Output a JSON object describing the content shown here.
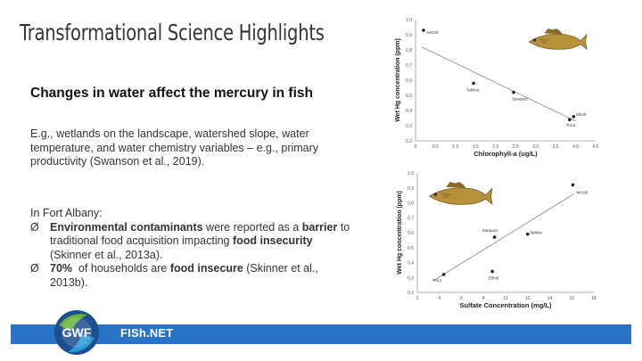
{
  "slide": {
    "title": "Transformational Science Highlights",
    "subheading": "Changes in water affect the mercury in fish",
    "paragraph": "E.g., wetlands on the landscape, watershed slope, water temperature, and water chemistry variables – e.g., primary productivity (Swanson et al., 2019).",
    "intro": "In Fort Albany:",
    "bullets": [
      {
        "mark": "Ø",
        "parts": [
          {
            "text": "Environmental contaminants",
            "bold": true
          },
          {
            "text": " were reported as a ",
            "bold": false
          },
          {
            "text": "barrier",
            "bold": true
          },
          {
            "text": " to traditional food acquisition impacting ",
            "bold": false
          },
          {
            "text": "food insecurity",
            "bold": true
          },
          {
            "text": " (Skinner et al., 2013a).",
            "bold": false
          }
        ]
      },
      {
        "mark": "Ø",
        "parts": [
          {
            "text": "70%",
            "bold": true
          },
          {
            "text": "  of households are ",
            "bold": false
          },
          {
            "text": "food insecure",
            "bold": true
          },
          {
            "text": " (Skinner et al., 2013b).",
            "bold": false
          }
        ]
      }
    ]
  },
  "footer": {
    "logo_text": "GWF",
    "brand": "FISh.NET",
    "bar_color": "#2a72c3"
  },
  "chart_data": [
    {
      "type": "scatter",
      "xlabel": "Chlorophyll-a (ug/L)",
      "ylabel": "Wet Hg concentration (ppm)",
      "xlim": [
        0,
        4.5
      ],
      "ylim": [
        0.2,
        1.0
      ],
      "xticks": [
        "0",
        "0.5",
        "1.0",
        "1.5",
        "2.0",
        "2.5",
        "3.0",
        "3.5",
        "4.0",
        "4.5"
      ],
      "yticks": [
        "0.2",
        "0.3",
        "0.4",
        "0.5",
        "0.6",
        "0.7",
        "0.8",
        "0.9",
        "1.0"
      ],
      "points": [
        {
          "label": "McGill",
          "x": 0.2,
          "y": 0.93
        },
        {
          "label": "Tahline",
          "x": 1.45,
          "y": 0.58
        },
        {
          "label": "Sanquez",
          "x": 2.45,
          "y": 0.52
        },
        {
          "label": "Elliott",
          "x": 3.95,
          "y": 0.36
        },
        {
          "label": "Trout",
          "x": 3.85,
          "y": 0.34
        }
      ],
      "trend": [
        [
          0.15,
          0.82
        ],
        [
          4.0,
          0.33
        ]
      ],
      "icon": "walleye-fish"
    },
    {
      "type": "scatter",
      "xlabel": "Sulfate Concentration (mg/L)",
      "ylabel": "Wet Hg concentration (ppm)",
      "xlim": [
        2,
        18
      ],
      "ylim": [
        0.2,
        1.0
      ],
      "xticks": [
        "2",
        "4",
        "6",
        "8",
        "10",
        "12",
        "14",
        "16",
        "18"
      ],
      "yticks": [
        "0.2",
        "0.3",
        "0.4",
        "0.5",
        "0.6",
        "0.7",
        "0.8",
        "0.9",
        "1.0"
      ],
      "points": [
        {
          "label": "McGill",
          "x": 16.1,
          "y": 0.92
        },
        {
          "label": "Tahline",
          "x": 12.0,
          "y": 0.59
        },
        {
          "label": "Sanquez",
          "x": 9.0,
          "y": 0.57
        },
        {
          "label": "Trout",
          "x": 4.4,
          "y": 0.32
        },
        {
          "label": "Elliott",
          "x": 8.8,
          "y": 0.34
        }
      ],
      "trend": [
        [
          3.5,
          0.28
        ],
        [
          16.2,
          0.86
        ]
      ],
      "icon": "walleye-fish"
    }
  ]
}
